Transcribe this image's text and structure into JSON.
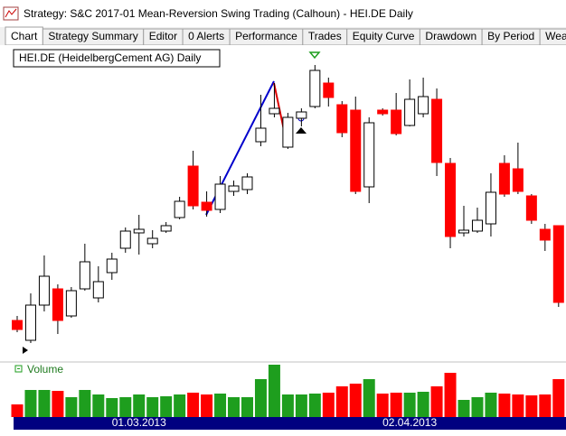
{
  "window": {
    "title": "Strategy: S&C 2017-01 Mean-Reversion Swing Trading (Calhoun) - HEI.DE Daily",
    "tabs": [
      "Chart",
      "Strategy Summary",
      "Editor",
      "0 Alerts",
      "Performance",
      "Trades",
      "Equity Curve",
      "Drawdown",
      "By Period",
      "WealthSignals 2"
    ]
  },
  "chart_data": {
    "type": "candlestick",
    "title": "HEI.DE (HeidelbergCement AG) Daily",
    "volume_label": "Volume",
    "up_color": "#ffffff",
    "down_color": "#ff0000",
    "volume_up_color": "#1e9e1e",
    "volume_down_color": "#ff0000",
    "open": [
      45,
      23,
      62,
      80,
      50,
      80,
      70,
      98,
      125,
      142,
      130,
      144,
      159,
      216,
      176,
      168,
      188,
      190,
      243,
      274,
      237,
      269,
      282,
      308,
      284,
      278,
      193,
      278,
      278,
      261,
      274,
      290,
      219,
      142,
      144,
      152,
      219,
      213,
      183,
      146,
      150
    ],
    "high": [
      50,
      75,
      117,
      85,
      82,
      130,
      105,
      120,
      148,
      162,
      145,
      154,
      182,
      233,
      188,
      205,
      200,
      208,
      295,
      308,
      275,
      280,
      328,
      314,
      288,
      293,
      270,
      280,
      297,
      312,
      314,
      302,
      225,
      172,
      170,
      208,
      228,
      242,
      185,
      152,
      150
    ],
    "low": [
      32,
      20,
      55,
      30,
      48,
      78,
      65,
      90,
      120,
      118,
      125,
      142,
      157,
      168,
      160,
      164,
      183,
      185,
      238,
      270,
      235,
      260,
      280,
      282,
      248,
      185,
      175,
      272,
      250,
      260,
      270,
      205,
      125,
      138,
      142,
      138,
      182,
      185,
      152,
      122,
      60
    ],
    "close": [
      35,
      62,
      94,
      45,
      78,
      110,
      88,
      113,
      144,
      146,
      136,
      150,
      177,
      172,
      167,
      196,
      194,
      204,
      258,
      280,
      270,
      276,
      322,
      292,
      253,
      188,
      264,
      274,
      252,
      290,
      293,
      220,
      138,
      145,
      156,
      187,
      185,
      188,
      156,
      134,
      65
    ],
    "volume": [
      14,
      30,
      30,
      29,
      22,
      30,
      25,
      21,
      22,
      25,
      22,
      23,
      25,
      27,
      25,
      26,
      22,
      22,
      42,
      58,
      25,
      25,
      26,
      27,
      34,
      37,
      42,
      26,
      27,
      27,
      28,
      34,
      49,
      19,
      22,
      27,
      26,
      25,
      24,
      25,
      42
    ],
    "ylim": [
      0,
      350
    ],
    "volume_ylim": [
      0,
      60
    ],
    "date_labels": [
      {
        "index": 9,
        "label": "01.03.2013"
      },
      {
        "index": 29,
        "label": "02.04.2013"
      }
    ]
  }
}
